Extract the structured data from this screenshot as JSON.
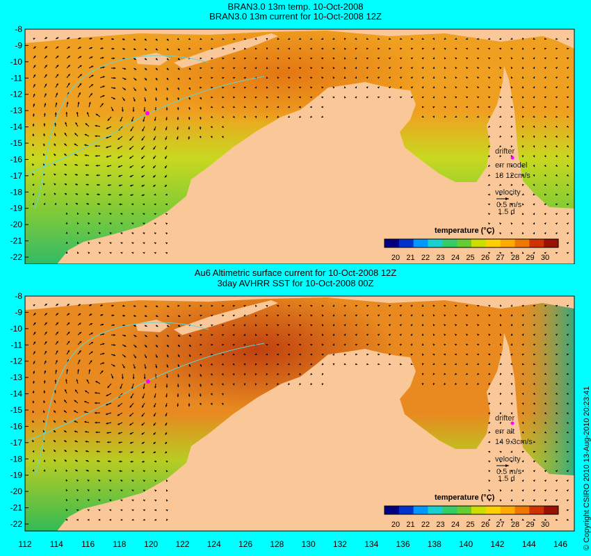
{
  "panels": [
    {
      "title_line1": "BRAN3.0 13m temp. 10-Oct-2008",
      "title_line2": "BRAN3.0 13m current for 10-Oct-2008 12Z",
      "drifter_label": "drifter",
      "err_label": "err model",
      "err_value": "18 12cm/s",
      "velocity_label": "velocity",
      "velocity_scale": "0.5 m/s",
      "velocity_time": "1.5 d",
      "colorbar_title": "temperature (°C)"
    },
    {
      "title_line1": "Au6 Altimetric surface current for 10-Oct-2008 12Z",
      "title_line2": "3day AVHRR SST for 10-Oct-2008 00Z",
      "drifter_label": "drifter",
      "err_label": "err alt",
      "err_value": "14 9.3cm/s",
      "velocity_label": "velocity",
      "velocity_scale": "0.5 m/s",
      "velocity_time": "1.5 d",
      "colorbar_title": "temperature (°C)"
    }
  ],
  "y_ticks": [
    "-8",
    "-9",
    "-10",
    "-11",
    "-12",
    "-13",
    "-14",
    "-15",
    "-16",
    "-17",
    "-18",
    "-19",
    "-20",
    "-21",
    "-22"
  ],
  "x_ticks": [
    "112",
    "114",
    "116",
    "118",
    "120",
    "122",
    "124",
    "126",
    "128",
    "130",
    "132",
    "134",
    "136",
    "138",
    "140",
    "142",
    "144",
    "146"
  ],
  "colorbar_ticks": [
    "20",
    "21",
    "22",
    "23",
    "24",
    "25",
    "26",
    "27",
    "28",
    "29",
    "30"
  ],
  "colorbar_colors": [
    "#00007f",
    "#0033cc",
    "#0099ff",
    "#19cfd0",
    "#33cc66",
    "#66cc33",
    "#ccdd00",
    "#ffd000",
    "#ffaa00",
    "#ee7700",
    "#cc3300",
    "#991100"
  ],
  "copyright": "© Copyright CSIRO 2010    13-Aug-2010 20:23:41",
  "colors": {
    "background": "#00ffff",
    "land": "#fac898",
    "drifter": "#ff00ff",
    "contour": "#5fd7d7"
  }
}
